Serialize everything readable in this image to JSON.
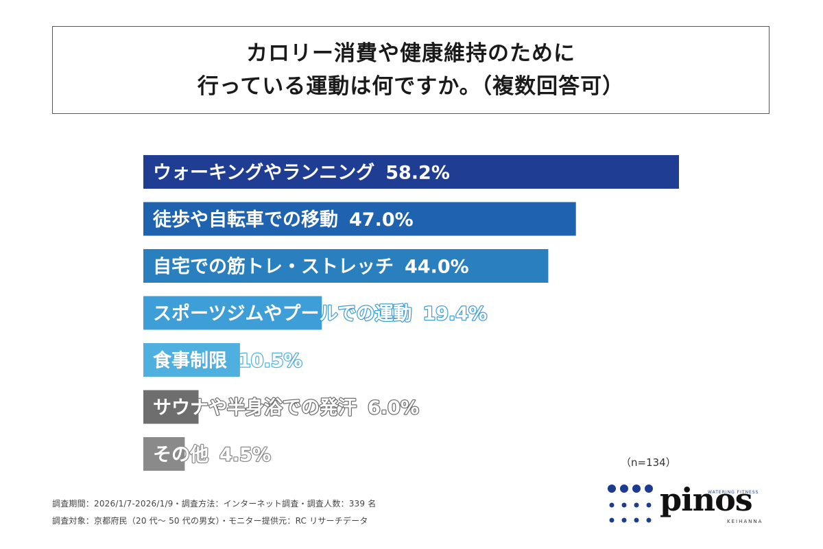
{
  "title": {
    "line1": "カロリー消費や健康維持のために",
    "line2": "行っている運動は何ですか。（複数回答可）"
  },
  "chart_data": {
    "type": "bar",
    "orientation": "horizontal",
    "categories": [
      "ウォーキングやランニング",
      "徒歩や自転車での移動",
      "自宅での筋トレ・ストレッチ",
      "スポーツジムやプールでの運動",
      "食事制限",
      "サウナや半身浴での発汗",
      "その他"
    ],
    "values": [
      58.2,
      47.0,
      44.0,
      19.4,
      10.5,
      6.0,
      4.5
    ],
    "value_labels": [
      "58.2%",
      "47.0%",
      "44.0%",
      "19.4%",
      "10.5%",
      "6.0%",
      "4.5%"
    ],
    "colors": [
      "#1f3e93",
      "#1f63b0",
      "#2a7fbf",
      "#3d9ed8",
      "#4fb0df",
      "#6e6e6e",
      "#8a8a8a"
    ],
    "xlim": [
      0,
      58.2
    ],
    "grid": false
  },
  "sample_size": "（n=134）",
  "footnotes": {
    "line1": "調査期間：2026/1/7-2026/1/9・調査方法：インターネット調査・調査人数：339 名",
    "line2": "調査対象：京都府民（20 代〜 50 代の男女）・モニター提供元：RC リサーチデータ"
  },
  "logo": {
    "word": "pinos",
    "tagline": "WATERING FITNESS",
    "sub": "KEIHANNA",
    "color": "#1d3c8f"
  }
}
